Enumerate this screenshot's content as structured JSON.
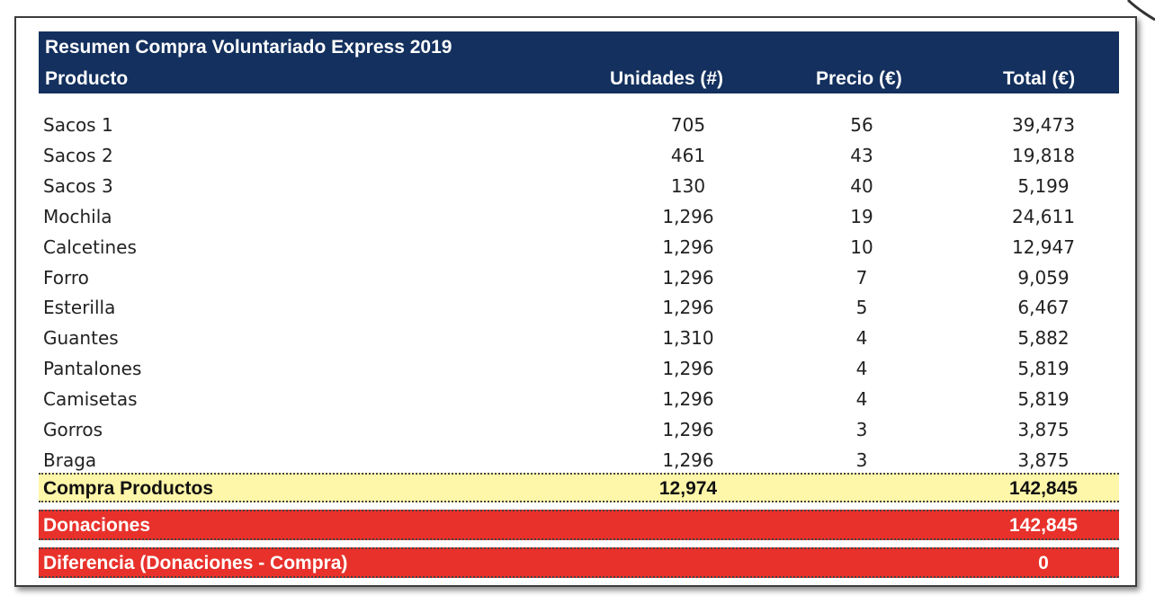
{
  "header": {
    "title": "Resumen Compra Voluntariado Express 2019",
    "col_product": "Producto",
    "col_units": "Unidades (#)",
    "col_price": "Precio (€)",
    "col_total": "Total (€)"
  },
  "rows": [
    {
      "product": "Sacos 1",
      "units": "705",
      "price": "56",
      "total": "39,473"
    },
    {
      "product": "Sacos 2",
      "units": "461",
      "price": "43",
      "total": "19,818"
    },
    {
      "product": "Sacos 3",
      "units": "130",
      "price": "40",
      "total": "5,199"
    },
    {
      "product": "Mochila",
      "units": "1,296",
      "price": "19",
      "total": "24,611"
    },
    {
      "product": "Calcetines",
      "units": "1,296",
      "price": "10",
      "total": "12,947"
    },
    {
      "product": "Forro",
      "units": "1,296",
      "price": "7",
      "total": "9,059"
    },
    {
      "product": "Esterilla",
      "units": "1,296",
      "price": "5",
      "total": "6,467"
    },
    {
      "product": "Guantes",
      "units": "1,310",
      "price": "4",
      "total": "5,882"
    },
    {
      "product": "Pantalones",
      "units": "1,296",
      "price": "4",
      "total": "5,819"
    },
    {
      "product": "Camisetas",
      "units": "1,296",
      "price": "4",
      "total": "5,819"
    },
    {
      "product": "Gorros",
      "units": "1,296",
      "price": "3",
      "total": "3,875"
    },
    {
      "product": "Braga",
      "units": "1,296",
      "price": "3",
      "total": "3,875"
    }
  ],
  "summary": {
    "label": "Compra Productos",
    "units": "12,974",
    "total": "142,845"
  },
  "donations": {
    "label": "Donaciones",
    "total": "142,845"
  },
  "difference": {
    "label": "Diferencia (Donaciones - Compra)",
    "total": "0"
  },
  "colors": {
    "header_bg": "#13305e",
    "summary_bg": "#fef6a8",
    "alert_bg": "#e8312b"
  }
}
